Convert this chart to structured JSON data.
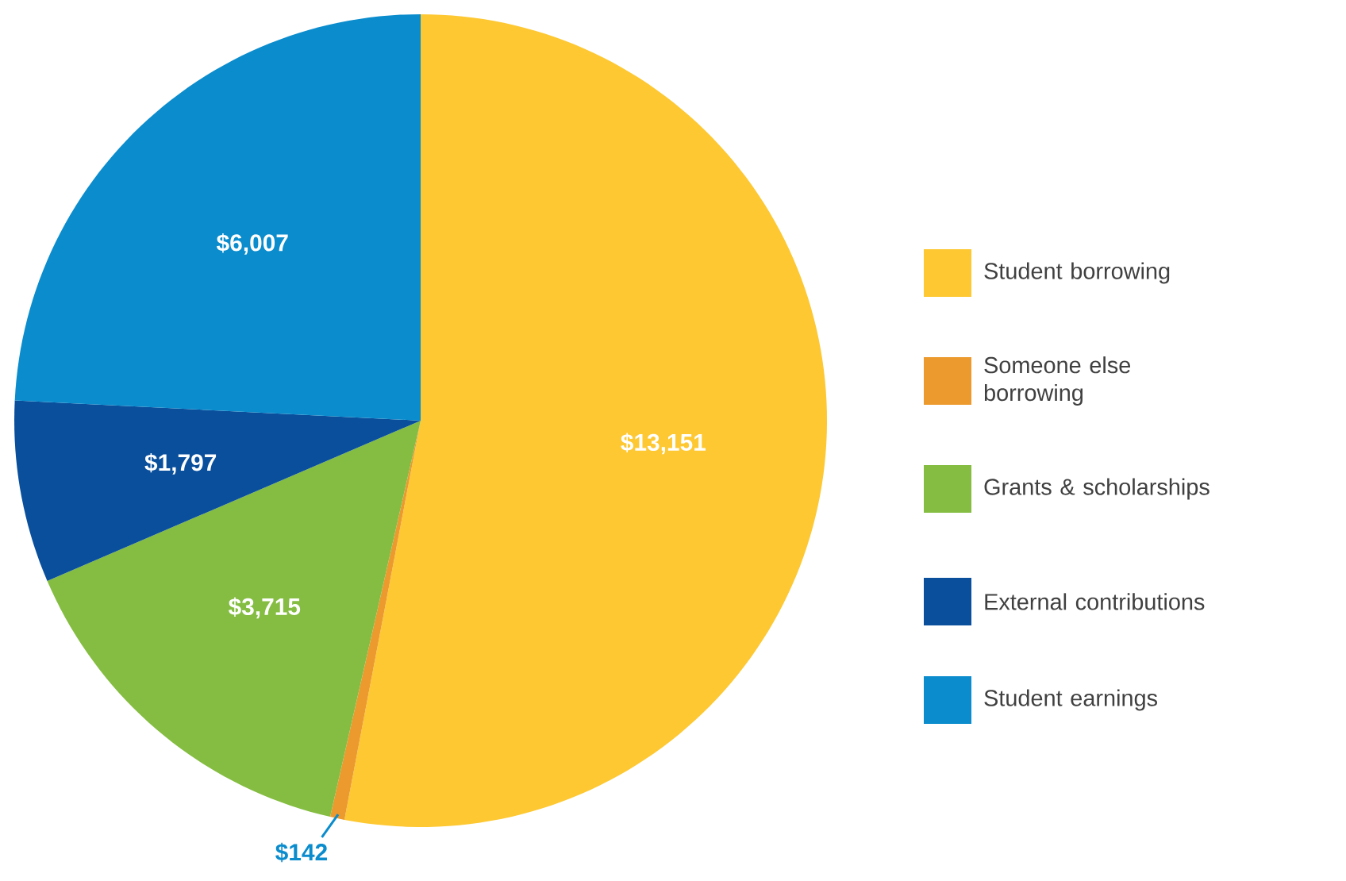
{
  "chart_data": {
    "type": "pie",
    "categories": [
      "Student borrowing",
      "Someone else borrowing",
      "Grants & scholarships",
      "External contributions",
      "Student earnings"
    ],
    "values": [
      13151,
      142,
      3715,
      1797,
      6007
    ],
    "value_labels": [
      "$13,151",
      "$142",
      "$3,715",
      "$1,797",
      "$6,007"
    ],
    "colors": [
      "#fdc832",
      "#ec9a2e",
      "#84bd41",
      "#0a4f9c",
      "#0a8ccd"
    ],
    "legend": "right"
  }
}
